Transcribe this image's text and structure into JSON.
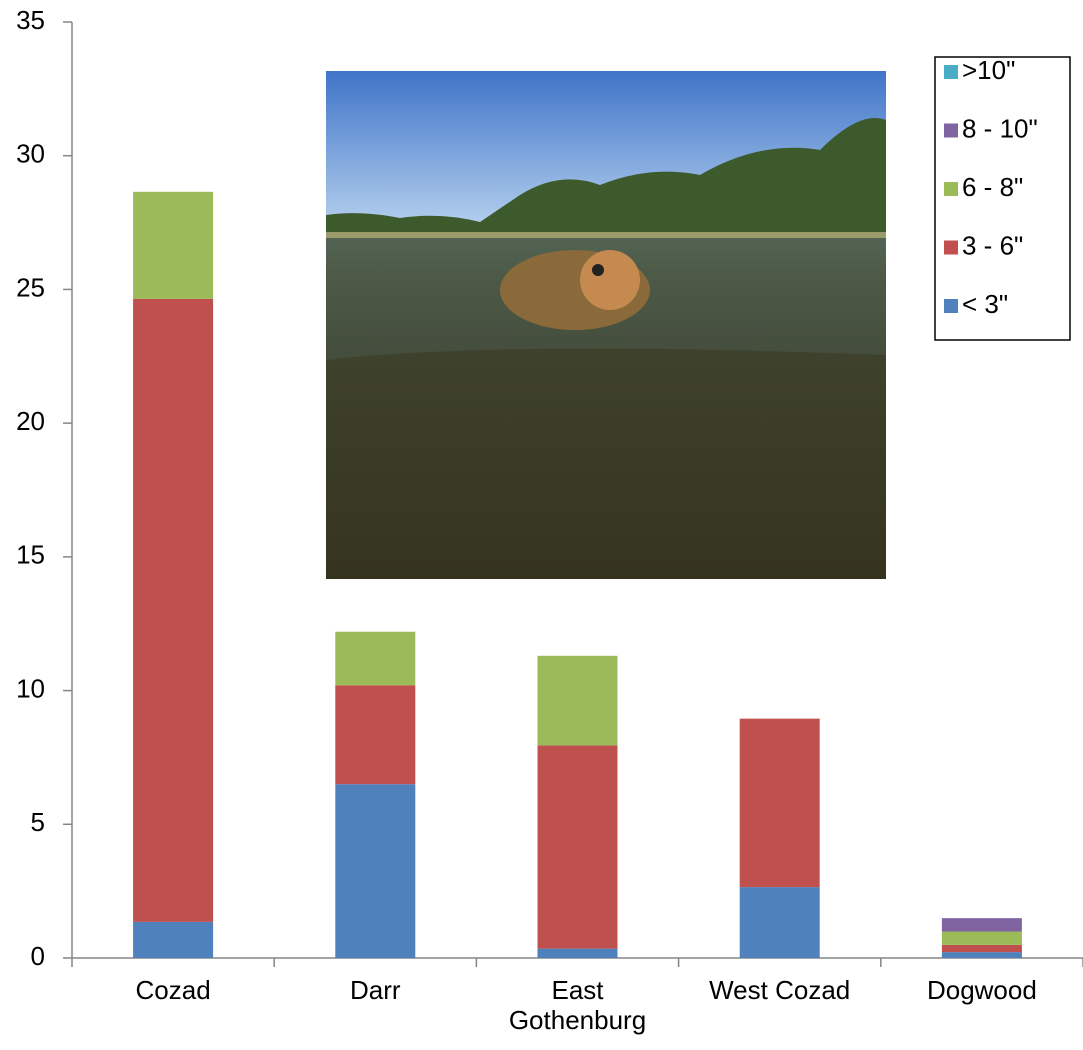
{
  "chart_data": {
    "type": "stacked_bar",
    "categories": [
      "Cozad",
      "Darr",
      "East Gothenburg",
      "West Cozad",
      "Dogwood"
    ],
    "series": [
      {
        "name": "< 3\"",
        "color": "#4f81bd",
        "values": [
          1.35,
          6.5,
          0.35,
          2.65,
          0.22
        ]
      },
      {
        "name": "3 - 6\"",
        "color": "#c0504d",
        "values": [
          23.3,
          3.7,
          7.6,
          6.3,
          0.27
        ]
      },
      {
        "name": "6 - 8\"",
        "color": "#9bbb59",
        "values": [
          4.0,
          2.0,
          3.35,
          0,
          0.5
        ]
      },
      {
        "name": "8 - 10\"",
        "color": "#8064a2",
        "values": [
          0,
          0,
          0,
          0,
          0.5
        ]
      },
      {
        "name": ">10\"",
        "color": "#4bacc6",
        "values": [
          0,
          0,
          0,
          0,
          0
        ]
      }
    ],
    "ylim": [
      0,
      35
    ],
    "yticks": [
      0,
      5,
      10,
      15,
      20,
      25,
      30,
      35
    ],
    "grid": false,
    "legend": "upper right"
  }
}
